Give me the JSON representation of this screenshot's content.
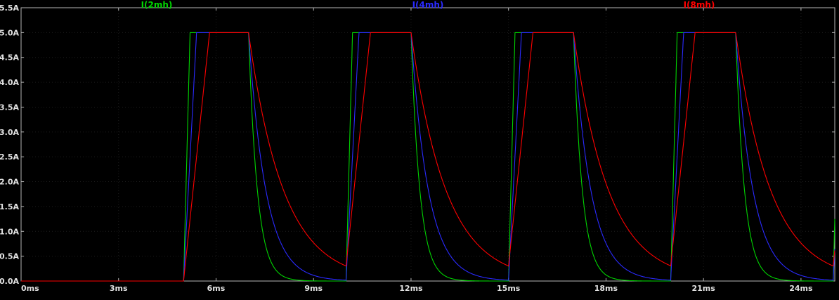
{
  "legend": {
    "traces": [
      {
        "label": "I(2mh)",
        "color": "#00d400"
      },
      {
        "label": "I(4mh)",
        "color": "#2a2aff"
      },
      {
        "label": "I(8mh)",
        "color": "#ff0000"
      }
    ]
  },
  "colors": {
    "background": "#000000",
    "frame": "#b6b6b6",
    "grid": "#1d1d1d",
    "axis_text": "#e2e2e2"
  },
  "chart_data": {
    "type": "line",
    "description": "Periodic inductor current pulses: linear ramp to 5A plateau during 2ms on-window each 5ms period starting at 5ms, then exponential decay; ramp slope and decay time constant scale with inductance (2mH fastest rise/decay, 8mH slowest).",
    "xlim": [
      0,
      25.04
    ],
    "ylim": [
      0,
      5.5
    ],
    "grid": true,
    "x_tick_values": [
      0,
      3,
      6,
      9,
      12,
      15,
      18,
      21,
      24
    ],
    "x_tick_labels": [
      "0ms",
      "3ms",
      "6ms",
      "9ms",
      "12ms",
      "15ms",
      "18ms",
      "21ms",
      "24ms"
    ],
    "y_tick_values": [
      0,
      0.5,
      1,
      1.5,
      2,
      2.5,
      3,
      3.5,
      4,
      4.5,
      5,
      5.5
    ],
    "y_tick_labels": [
      "0.0A",
      "0.5A",
      "1.0A",
      "1.5A",
      "2.0A",
      "2.5A",
      "3.0A",
      "3.5A",
      "4.0A",
      "4.5A",
      "5.0A",
      "5.5A"
    ],
    "series": [
      {
        "name": "I(2mh)",
        "color": "#00d400",
        "inductance_mH": 2,
        "amplitude_A": 5.0,
        "first_pulse_start_ms": 5.0,
        "period_ms": 5.0,
        "on_duration_ms": 2.0,
        "rise_slope_A_per_ms": 25.0,
        "decay_tau_ms": 0.27
      },
      {
        "name": "I(4mh)",
        "color": "#2a2aff",
        "inductance_mH": 4,
        "amplitude_A": 5.0,
        "first_pulse_start_ms": 5.0,
        "period_ms": 5.0,
        "on_duration_ms": 2.0,
        "rise_slope_A_per_ms": 12.5,
        "decay_tau_ms": 0.53
      },
      {
        "name": "I(8mh)",
        "color": "#ff0000",
        "inductance_mH": 8,
        "amplitude_A": 5.0,
        "first_pulse_start_ms": 5.0,
        "period_ms": 5.0,
        "on_duration_ms": 2.0,
        "rise_slope_A_per_ms": 6.25,
        "decay_tau_ms": 1.07
      }
    ]
  }
}
